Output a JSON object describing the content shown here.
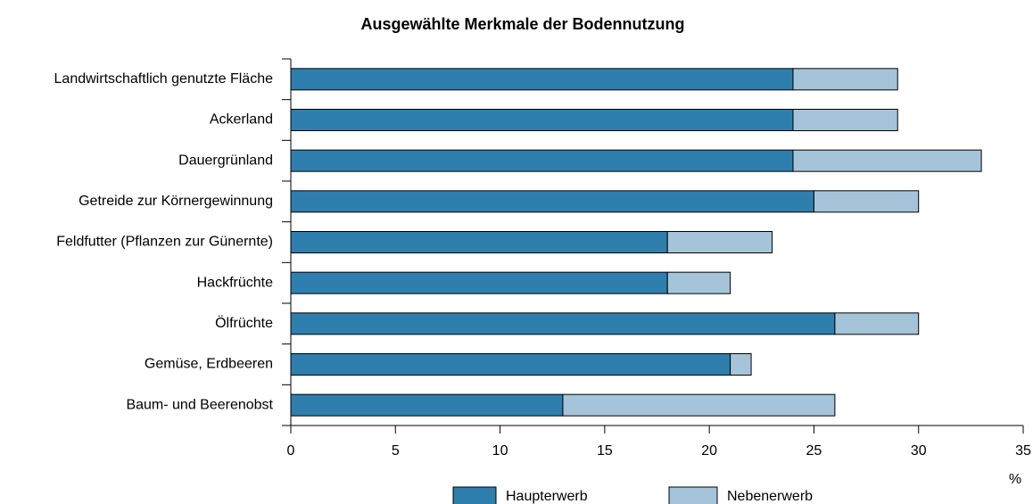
{
  "chart_data": {
    "type": "stacked_bar_horizontal",
    "title": "Ausgewählte Merkmale der Bodennutzung",
    "x_label": "%",
    "categories": [
      "Landwirtschaftlich genutzte Fläche",
      "Ackerland",
      "Dauergrünland",
      "Getreide zur Körnergewinnung",
      "Feldfutter (Pflanzen zur Günernte)",
      "Hackfrüchte",
      "Ölfrüchte",
      "Gemüse, Erdbeeren",
      "Baum- und Beerenobst"
    ],
    "series": [
      {
        "name": "Haupterwerb",
        "color": "#2e7fad",
        "values": [
          24,
          24,
          24,
          25,
          18,
          18,
          26,
          21,
          13
        ]
      },
      {
        "name": "Nebenerwerb",
        "color": "#a6c4d9",
        "values": [
          5,
          5,
          9,
          5,
          5,
          3,
          4,
          1,
          13
        ]
      }
    ],
    "xlim": [
      0,
      35
    ],
    "xticks": [
      0,
      5,
      10,
      15,
      20,
      25,
      30,
      35
    ],
    "legend": "bottom"
  }
}
